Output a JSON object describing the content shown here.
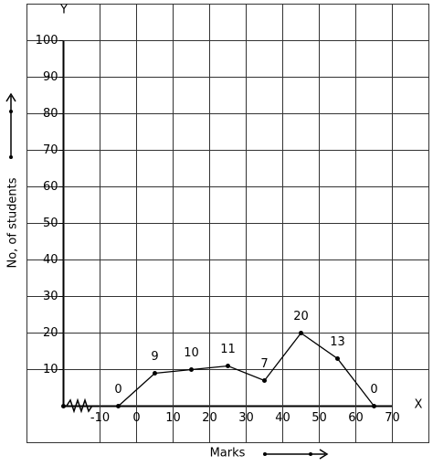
{
  "chart_data": {
    "type": "line",
    "x_label": "Marks",
    "y_label": "No, of students",
    "x_axis_name": "X",
    "y_axis_name": "Y",
    "x": [
      -5,
      5,
      15,
      25,
      35,
      45,
      55,
      65
    ],
    "values": [
      0,
      9,
      10,
      11,
      7,
      20,
      13,
      0
    ],
    "color": "#000000",
    "xlim": [
      -30,
      80
    ],
    "ylim": [
      -10,
      110
    ],
    "xticks": [
      -10,
      0,
      10,
      20,
      30,
      40,
      50,
      60,
      70
    ],
    "yticks": [
      10,
      20,
      30,
      40,
      50,
      60,
      70,
      80,
      90,
      100
    ],
    "grid": true
  }
}
